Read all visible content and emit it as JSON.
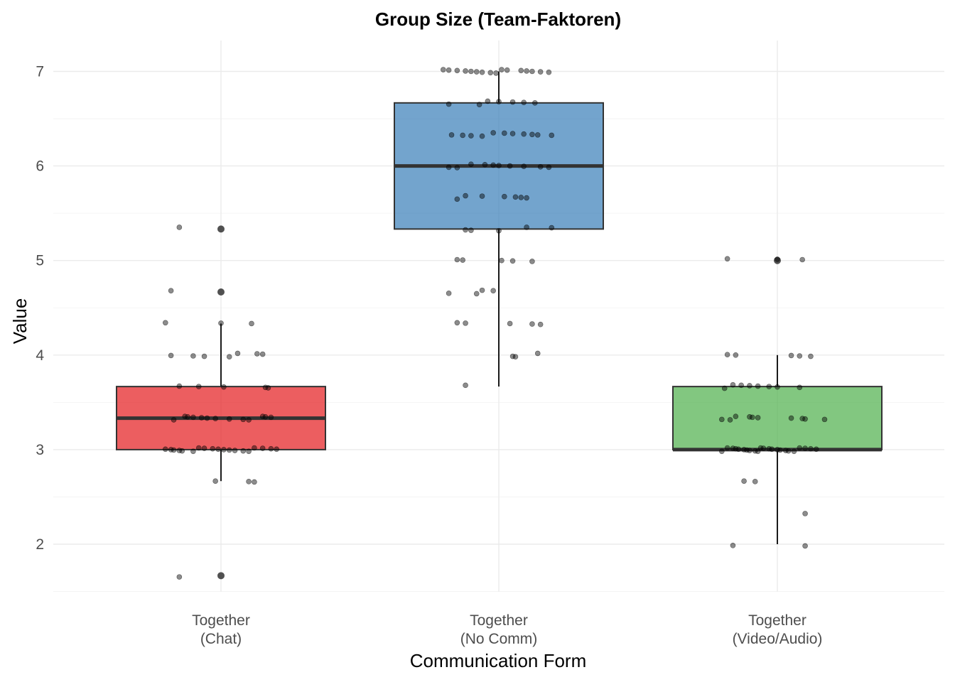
{
  "chart_data": {
    "type": "box",
    "title": "Group Size (Team-Faktoren)",
    "xlabel": "Communication Form",
    "ylabel": "Value",
    "ylim": [
      1.45,
      7.25
    ],
    "yticks": [
      2,
      3,
      4,
      5,
      6,
      7
    ],
    "grid": true,
    "legend": "none",
    "categories": [
      {
        "line1": "Together",
        "line2": "(Chat)"
      },
      {
        "line1": "Together",
        "line2": "(No Comm)"
      },
      {
        "line1": "Together",
        "line2": "(Video/Audio)"
      }
    ],
    "boxes": [
      {
        "color": "#e41a1c",
        "min": 2.667,
        "q1": 3.0,
        "median": 3.333,
        "q3": 3.667,
        "max": 4.333,
        "outliers": [
          5.333,
          4.667,
          1.667
        ]
      },
      {
        "color": "#377eb8",
        "min": 3.667,
        "q1": 5.333,
        "median": 6.0,
        "q3": 6.667,
        "max": 7.0,
        "outliers": []
      },
      {
        "color": "#4daf4a",
        "min": 2.0,
        "q1": 3.0,
        "median": 3.0,
        "q3": 3.667,
        "max": 4.0,
        "outliers": [
          5.0
        ]
      }
    ],
    "points": [
      [
        [
          -0.15,
          5.333
        ],
        [
          -0.18,
          4.667
        ],
        [
          -0.2,
          4.333
        ],
        [
          0.0,
          4.333
        ],
        [
          0.11,
          4.333
        ],
        [
          -0.18,
          4.0
        ],
        [
          -0.1,
          4.0
        ],
        [
          -0.06,
          4.0
        ],
        [
          0.03,
          4.0
        ],
        [
          0.06,
          4.0
        ],
        [
          0.13,
          4.0
        ],
        [
          0.15,
          4.0
        ],
        [
          -0.15,
          3.667
        ],
        [
          -0.08,
          3.667
        ],
        [
          0.01,
          3.667
        ],
        [
          0.16,
          3.667
        ],
        [
          0.17,
          3.667
        ],
        [
          -0.17,
          3.333
        ],
        [
          -0.13,
          3.333
        ],
        [
          -0.12,
          3.333
        ],
        [
          -0.1,
          3.333
        ],
        [
          -0.07,
          3.333
        ],
        [
          -0.05,
          3.333
        ],
        [
          -0.02,
          3.333
        ],
        [
          0.03,
          3.333
        ],
        [
          0.08,
          3.333
        ],
        [
          0.1,
          3.333
        ],
        [
          0.15,
          3.333
        ],
        [
          0.16,
          3.333
        ],
        [
          0.18,
          3.333
        ],
        [
          -0.2,
          3.0
        ],
        [
          -0.18,
          3.0
        ],
        [
          -0.17,
          3.0
        ],
        [
          -0.15,
          3.0
        ],
        [
          -0.14,
          3.0
        ],
        [
          -0.1,
          3.0
        ],
        [
          -0.08,
          3.0
        ],
        [
          -0.06,
          3.0
        ],
        [
          -0.03,
          3.0
        ],
        [
          -0.01,
          3.0
        ],
        [
          0.01,
          3.0
        ],
        [
          0.03,
          3.0
        ],
        [
          0.05,
          3.0
        ],
        [
          0.08,
          3.0
        ],
        [
          0.1,
          3.0
        ],
        [
          0.12,
          3.0
        ],
        [
          0.15,
          3.0
        ],
        [
          0.18,
          3.0
        ],
        [
          0.2,
          3.0
        ],
        [
          -0.02,
          2.667
        ],
        [
          0.1,
          2.667
        ],
        [
          0.12,
          2.667
        ],
        [
          -0.15,
          1.667
        ]
      ],
      [
        [
          -0.2,
          7.0
        ],
        [
          -0.18,
          7.0
        ],
        [
          -0.15,
          7.0
        ],
        [
          -0.12,
          7.0
        ],
        [
          -0.1,
          7.0
        ],
        [
          -0.08,
          7.0
        ],
        [
          -0.06,
          7.0
        ],
        [
          -0.03,
          7.0
        ],
        [
          -0.01,
          7.0
        ],
        [
          0.01,
          7.0
        ],
        [
          0.03,
          7.0
        ],
        [
          0.08,
          7.0
        ],
        [
          0.1,
          7.0
        ],
        [
          0.12,
          7.0
        ],
        [
          0.15,
          7.0
        ],
        [
          0.18,
          7.0
        ],
        [
          -0.18,
          6.667
        ],
        [
          -0.07,
          6.667
        ],
        [
          -0.04,
          6.667
        ],
        [
          0.0,
          6.667
        ],
        [
          0.05,
          6.667
        ],
        [
          0.09,
          6.667
        ],
        [
          0.13,
          6.667
        ],
        [
          -0.17,
          6.333
        ],
        [
          -0.13,
          6.333
        ],
        [
          -0.1,
          6.333
        ],
        [
          -0.06,
          6.333
        ],
        [
          -0.02,
          6.333
        ],
        [
          0.02,
          6.333
        ],
        [
          0.05,
          6.333
        ],
        [
          0.09,
          6.333
        ],
        [
          0.12,
          6.333
        ],
        [
          0.14,
          6.333
        ],
        [
          0.19,
          6.333
        ],
        [
          -0.18,
          6.0
        ],
        [
          -0.15,
          6.0
        ],
        [
          -0.1,
          6.0
        ],
        [
          -0.05,
          6.0
        ],
        [
          -0.02,
          6.0
        ],
        [
          0.0,
          6.0
        ],
        [
          0.04,
          6.0
        ],
        [
          0.09,
          6.0
        ],
        [
          0.15,
          6.0
        ],
        [
          0.18,
          6.0
        ],
        [
          -0.15,
          5.667
        ],
        [
          -0.12,
          5.667
        ],
        [
          -0.06,
          5.667
        ],
        [
          0.02,
          5.667
        ],
        [
          0.06,
          5.667
        ],
        [
          0.08,
          5.667
        ],
        [
          0.1,
          5.667
        ],
        [
          -0.12,
          5.333
        ],
        [
          -0.1,
          5.333
        ],
        [
          0.0,
          5.333
        ],
        [
          0.1,
          5.333
        ],
        [
          0.19,
          5.333
        ],
        [
          -0.15,
          5.0
        ],
        [
          -0.13,
          5.0
        ],
        [
          0.01,
          5.0
        ],
        [
          0.05,
          5.0
        ],
        [
          0.12,
          5.0
        ],
        [
          -0.18,
          4.667
        ],
        [
          -0.08,
          4.667
        ],
        [
          -0.06,
          4.667
        ],
        [
          -0.02,
          4.667
        ],
        [
          -0.15,
          4.333
        ],
        [
          -0.12,
          4.333
        ],
        [
          0.04,
          4.333
        ],
        [
          0.12,
          4.333
        ],
        [
          0.15,
          4.333
        ],
        [
          0.05,
          4.0
        ],
        [
          0.06,
          4.0
        ],
        [
          0.14,
          4.0
        ],
        [
          -0.12,
          3.667
        ]
      ],
      [
        [
          -0.18,
          5.0
        ],
        [
          0.0,
          5.0
        ],
        [
          0.09,
          5.0
        ],
        [
          -0.18,
          4.0
        ],
        [
          -0.15,
          4.0
        ],
        [
          0.05,
          4.0
        ],
        [
          0.08,
          4.0
        ],
        [
          0.12,
          4.0
        ],
        [
          -0.19,
          3.667
        ],
        [
          -0.16,
          3.667
        ],
        [
          -0.13,
          3.667
        ],
        [
          -0.1,
          3.667
        ],
        [
          -0.07,
          3.667
        ],
        [
          -0.03,
          3.667
        ],
        [
          0.0,
          3.667
        ],
        [
          0.08,
          3.667
        ],
        [
          -0.2,
          3.333
        ],
        [
          -0.17,
          3.333
        ],
        [
          -0.15,
          3.333
        ],
        [
          -0.1,
          3.333
        ],
        [
          -0.09,
          3.333
        ],
        [
          -0.07,
          3.333
        ],
        [
          0.05,
          3.333
        ],
        [
          0.09,
          3.333
        ],
        [
          0.1,
          3.333
        ],
        [
          0.17,
          3.333
        ],
        [
          -0.2,
          3.0
        ],
        [
          -0.18,
          3.0
        ],
        [
          -0.16,
          3.0
        ],
        [
          -0.15,
          3.0
        ],
        [
          -0.14,
          3.0
        ],
        [
          -0.12,
          3.0
        ],
        [
          -0.11,
          3.0
        ],
        [
          -0.1,
          3.0
        ],
        [
          -0.08,
          3.0
        ],
        [
          -0.07,
          3.0
        ],
        [
          -0.06,
          3.0
        ],
        [
          -0.05,
          3.0
        ],
        [
          -0.03,
          3.0
        ],
        [
          -0.02,
          3.0
        ],
        [
          0.0,
          3.0
        ],
        [
          0.01,
          3.0
        ],
        [
          0.03,
          3.0
        ],
        [
          0.04,
          3.0
        ],
        [
          0.06,
          3.0
        ],
        [
          0.08,
          3.0
        ],
        [
          0.1,
          3.0
        ],
        [
          0.12,
          3.0
        ],
        [
          0.14,
          3.0
        ],
        [
          -0.12,
          2.667
        ],
        [
          -0.08,
          2.667
        ],
        [
          0.1,
          2.333
        ],
        [
          -0.16,
          2.0
        ],
        [
          0.1,
          2.0
        ]
      ]
    ]
  }
}
